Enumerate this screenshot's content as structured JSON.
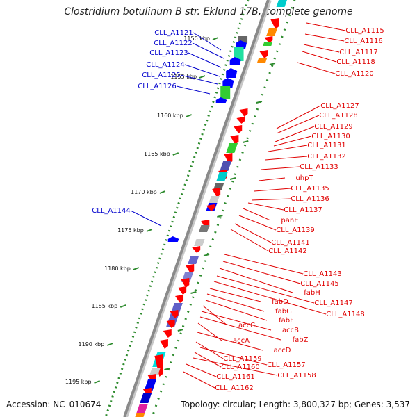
{
  "title": "Clostridium botulinum B str. Eklund 17B, complete genome",
  "accession": "Accession: NC_010674",
  "topology": "Topology: circular; Length: 3,800,327 bp; Genes: 3,537",
  "colors": {
    "backbone": "#8a8a8a",
    "tick": "#2e8b2e",
    "reverse_label": "#e00000",
    "forward_label": "#0000cc",
    "gene_red": "#ff0000",
    "gene_blue": "#0000ff"
  },
  "scale_labels": [
    "1150 kbp",
    "1155 kbp",
    "1160 kbp",
    "1165 kbp",
    "1170 kbp",
    "1175 kbp",
    "1180 kbp",
    "1185 kbp",
    "1190 kbp",
    "1195 kbp"
  ],
  "forward_labels": [
    "CLL_A1121",
    "CLL_A1122",
    "CLL_A1123",
    "CLL_A1124",
    "CLL_A1125",
    "CLL_A1126",
    "CLL_A1144"
  ],
  "reverse_labels": [
    "CLL_A1115",
    "CLL_A1116",
    "CLL_A1117",
    "CLL_A1118",
    "CLL_A1120",
    "CLL_A1127",
    "CLL_A1128",
    "CLL_A1129",
    "CLL_A1130",
    "CLL_A1131",
    "CLL_A1132",
    "CLL_A1133",
    "uhpT",
    "CLL_A1135",
    "CLL_A1136",
    "CLL_A1137",
    "panE",
    "CLL_A1139",
    "CLL_A1141",
    "CLL_A1142",
    "CLL_A1143",
    "CLL_A1145",
    "fabH",
    "CLL_A1147",
    "CLL_A1148",
    "fabD",
    "fabG",
    "fabF",
    "accC",
    "accB",
    "fabZ",
    "accA",
    "accD",
    "CLL_A1159",
    "CLL_A1157",
    "CLL_A1160",
    "CLL_A1158",
    "CLL_A1161",
    "CLL_A1162"
  ]
}
